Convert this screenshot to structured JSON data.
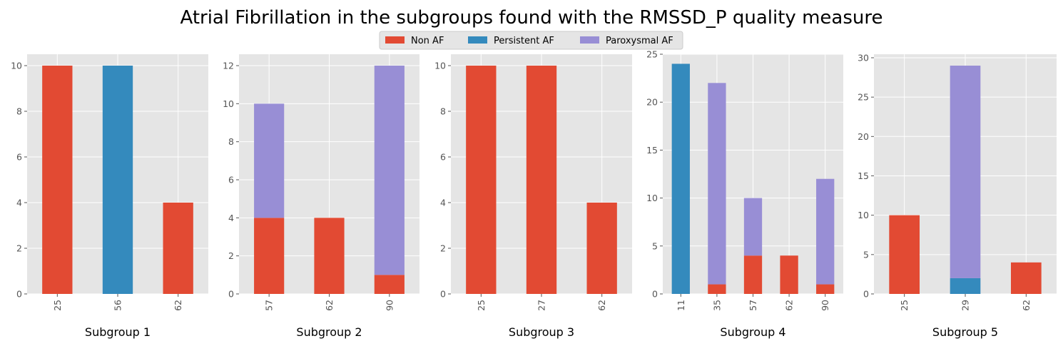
{
  "chart_data": {
    "title": "Atrial Fibrillation in the subgroups found with the RMSSD_P quality measure",
    "type": "bar",
    "stacked": true,
    "grid": true,
    "legend": {
      "placement": "top-center",
      "entries": [
        {
          "name": "Non AF",
          "color": "#E24A33"
        },
        {
          "name": "Persistent AF",
          "color": "#348ABD"
        },
        {
          "name": "Paroxysmal AF",
          "color": "#988ED5"
        }
      ]
    },
    "panels": [
      {
        "xlabel": "Subgroup 1",
        "categories": [
          "25",
          "56",
          "62"
        ],
        "ylim": [
          0,
          10.5
        ],
        "yticks": [
          0,
          2,
          4,
          6,
          8,
          10
        ],
        "series": [
          {
            "name": "Non AF",
            "values": [
              10,
              0,
              4
            ]
          },
          {
            "name": "Persistent AF",
            "values": [
              0,
              10,
              0
            ]
          },
          {
            "name": "Paroxysmal AF",
            "values": [
              0,
              0,
              0
            ]
          }
        ]
      },
      {
        "xlabel": "Subgroup 2",
        "categories": [
          "57",
          "62",
          "90"
        ],
        "ylim": [
          0,
          12.6
        ],
        "yticks": [
          0,
          2,
          4,
          6,
          8,
          10,
          12
        ],
        "series": [
          {
            "name": "Non AF",
            "values": [
              4,
              4,
              1
            ]
          },
          {
            "name": "Persistent AF",
            "values": [
              0,
              0,
              0
            ]
          },
          {
            "name": "Paroxysmal AF",
            "values": [
              6,
              0,
              11
            ]
          }
        ]
      },
      {
        "xlabel": "Subgroup 3",
        "categories": [
          "25",
          "27",
          "62"
        ],
        "ylim": [
          0,
          10.5
        ],
        "yticks": [
          0,
          2,
          4,
          6,
          8,
          10
        ],
        "series": [
          {
            "name": "Non AF",
            "values": [
              10,
              10,
              4
            ]
          },
          {
            "name": "Persistent AF",
            "values": [
              0,
              0,
              0
            ]
          },
          {
            "name": "Paroxysmal AF",
            "values": [
              0,
              0,
              0
            ]
          }
        ]
      },
      {
        "xlabel": "Subgroup 4",
        "categories": [
          "11",
          "35",
          "57",
          "62",
          "90"
        ],
        "ylim": [
          0,
          25
        ],
        "yticks": [
          0,
          5,
          10,
          15,
          20,
          25
        ],
        "series": [
          {
            "name": "Non AF",
            "values": [
              0,
              1,
              4,
              4,
              1
            ]
          },
          {
            "name": "Persistent AF",
            "values": [
              24,
              0,
              0,
              0,
              0
            ]
          },
          {
            "name": "Paroxysmal AF",
            "values": [
              0,
              21,
              6,
              0,
              11
            ]
          }
        ]
      },
      {
        "xlabel": "Subgroup 5",
        "categories": [
          "25",
          "29",
          "62"
        ],
        "ylim": [
          0,
          30.45
        ],
        "yticks": [
          0,
          5,
          10,
          15,
          20,
          25,
          30
        ],
        "series": [
          {
            "name": "Non AF",
            "values": [
              10,
              0,
              4
            ]
          },
          {
            "name": "Persistent AF",
            "values": [
              0,
              2,
              0
            ]
          },
          {
            "name": "Paroxysmal AF",
            "values": [
              0,
              27,
              0
            ]
          }
        ]
      }
    ]
  }
}
